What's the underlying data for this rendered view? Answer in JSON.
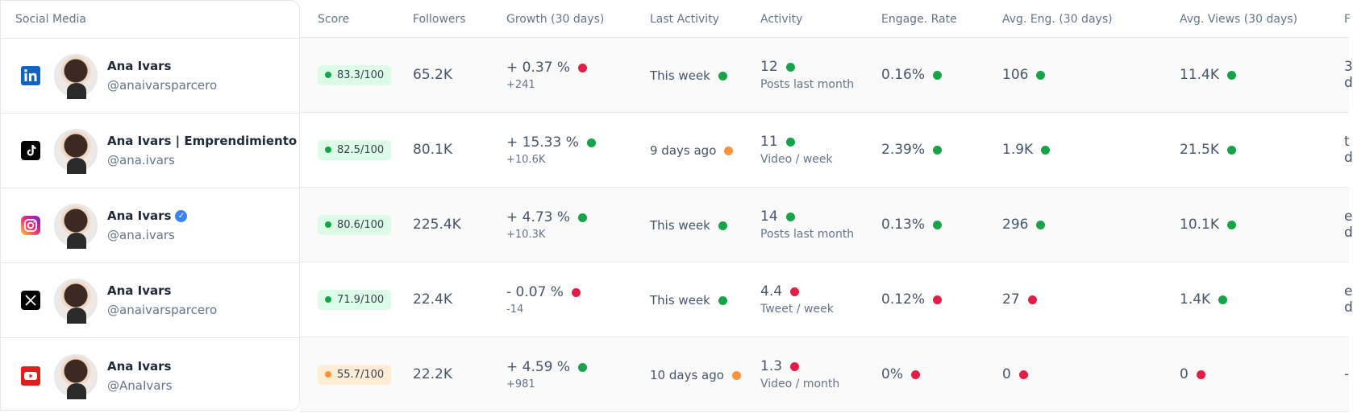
{
  "colors": {
    "green": "#16a34a",
    "red": "#e11d48",
    "orange": "#fb923c",
    "score_green_bg": "#dcfce7",
    "score_orange_bg": "#ffedd5"
  },
  "headers": {
    "social_media": "Social Media",
    "score": "Score",
    "followers": "Followers",
    "growth": "Growth (30 days)",
    "last_activity": "Last Activity",
    "activity": "Activity",
    "engage_rate": "Engage. Rate",
    "avg_eng": "Avg. Eng. (30 days)",
    "avg_views": "Avg. Views (30 days)",
    "extra": "F"
  },
  "rows": [
    {
      "network": "linkedin-icon",
      "name": "Ana Ivars",
      "verified": false,
      "handle": "@anaivarsparcero",
      "score": "83.3/100",
      "score_status": "green",
      "followers": "65.2K",
      "growth": "+ 0.37 %",
      "growth_status": "red",
      "growth_sub": "+241",
      "last_activity": "This week",
      "last_status": "green",
      "activity": "12",
      "activity_status": "green",
      "activity_sub": "Posts last month",
      "engage": "0.16%",
      "engage_status": "green",
      "avg_eng": "106",
      "avg_eng_status": "green",
      "avg_views": "11.4K",
      "avg_views_status": "green",
      "extra_top": "3",
      "extra_bot": "d"
    },
    {
      "network": "tiktok-icon",
      "name": "Ana Ivars | Emprendimiento",
      "verified": false,
      "handle": "@ana.ivars",
      "score": "82.5/100",
      "score_status": "green",
      "followers": "80.1K",
      "growth": "+ 15.33 %",
      "growth_status": "green",
      "growth_sub": "+10.6K",
      "last_activity": "9 days ago",
      "last_status": "orange",
      "activity": "11",
      "activity_status": "green",
      "activity_sub": "Video / week",
      "engage": "2.39%",
      "engage_status": "green",
      "avg_eng": "1.9K",
      "avg_eng_status": "green",
      "avg_views": "21.5K",
      "avg_views_status": "green",
      "extra_top": "t",
      "extra_bot": "d"
    },
    {
      "network": "instagram-icon",
      "name": "Ana Ivars",
      "verified": true,
      "handle": "@ana.ivars",
      "score": "80.6/100",
      "score_status": "green",
      "followers": "225.4K",
      "growth": "+ 4.73 %",
      "growth_status": "green",
      "growth_sub": "+10.3K",
      "last_activity": "This week",
      "last_status": "green",
      "activity": "14",
      "activity_status": "green",
      "activity_sub": "Posts last month",
      "engage": "0.13%",
      "engage_status": "green",
      "avg_eng": "296",
      "avg_eng_status": "green",
      "avg_views": "10.1K",
      "avg_views_status": "green",
      "extra_top": "e",
      "extra_bot": "d"
    },
    {
      "network": "x-icon",
      "name": "Ana Ivars",
      "verified": false,
      "handle": "@anaivarsparcero",
      "score": "71.9/100",
      "score_status": "green",
      "followers": "22.4K",
      "growth": "- 0.07 %",
      "growth_status": "red",
      "growth_sub": "-14",
      "last_activity": "This week",
      "last_status": "green",
      "activity": "4.4",
      "activity_status": "red",
      "activity_sub": "Tweet / week",
      "engage": "0.12%",
      "engage_status": "red",
      "avg_eng": "27",
      "avg_eng_status": "red",
      "avg_views": "1.4K",
      "avg_views_status": "green",
      "extra_top": "e",
      "extra_bot": "d"
    },
    {
      "network": "youtube-icon",
      "name": "Ana Ivars",
      "verified": false,
      "handle": "@AnaIvars",
      "score": "55.7/100",
      "score_status": "orange",
      "followers": "22.2K",
      "growth": "+ 4.59 %",
      "growth_status": "green",
      "growth_sub": "+981",
      "last_activity": "10 days ago",
      "last_status": "orange",
      "activity": "1.3",
      "activity_status": "red",
      "activity_sub": "Video / month",
      "engage": "0%",
      "engage_status": "red",
      "avg_eng": "0",
      "avg_eng_status": "red",
      "avg_views": "0",
      "avg_views_status": "red",
      "extra_top": "-",
      "extra_bot": ""
    }
  ]
}
